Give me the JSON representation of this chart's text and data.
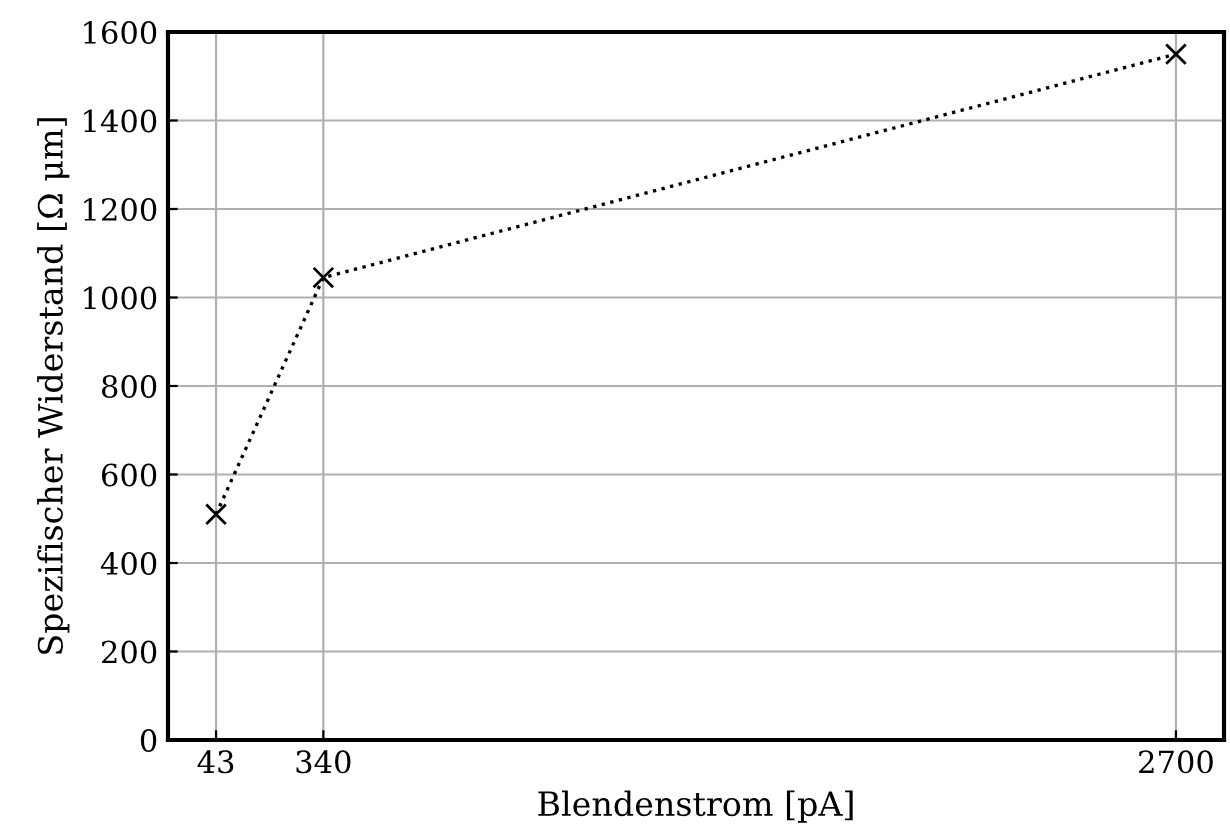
{
  "chart_data": {
    "type": "line",
    "xlabel": "Blendenstrom [pA]",
    "ylabel": "Spezifischer Widerstand [Ω μm]",
    "x": [
      43,
      340,
      2700
    ],
    "series": [
      {
        "color": "#000000",
        "values": [
          510,
          1045,
          1550
        ]
      }
    ],
    "xlim": [
      -90,
      2833
    ],
    "xticks": [
      43,
      340,
      2700
    ],
    "ylim": [
      0,
      1600
    ],
    "yticks": [
      0,
      200,
      400,
      600,
      800,
      1000,
      1200,
      1400,
      1600
    ],
    "grid": true,
    "marker": "cross",
    "line_style": "dotted"
  }
}
